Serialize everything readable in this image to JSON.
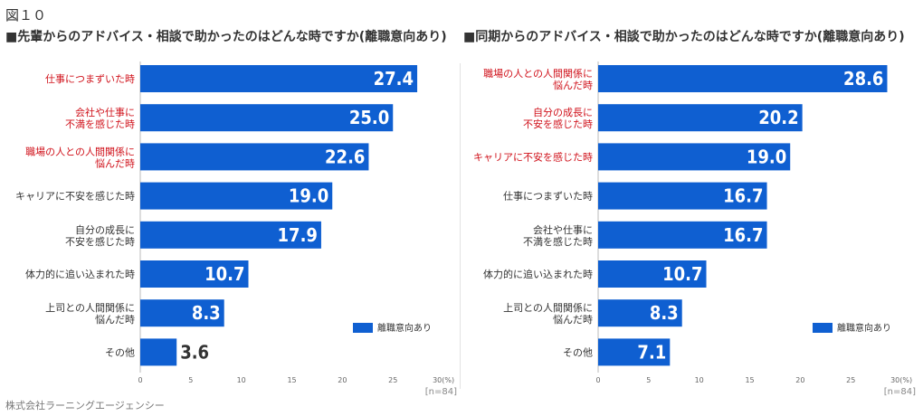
{
  "figure_label": "図１０",
  "footer": "株式会社ラーニングエージェンシー",
  "colors": {
    "bar": "#0f5fd1",
    "highlight": "#d0121b",
    "text": "#333333",
    "value_on_bar": "#ffffff",
    "value_outside": "#333333"
  },
  "chart_data": [
    {
      "type": "bar",
      "orientation": "horizontal",
      "title": "■先輩からのアドバイス・相談で助かったのはどんな時ですか(離職意向あり)",
      "categories": [
        [
          "仕事につまずいた時"
        ],
        [
          "会社や仕事に",
          "不満を感じた時"
        ],
        [
          "職場の人との人間関係に",
          "悩んだ時"
        ],
        [
          "キャリアに不安を感じた時"
        ],
        [
          "自分の成長に",
          "不安を感じた時"
        ],
        [
          "体力的に追い込まれた時"
        ],
        [
          "上司との人間関係に",
          "悩んだ時"
        ],
        [
          "その他"
        ]
      ],
      "highlighted": [
        true,
        true,
        true,
        false,
        false,
        false,
        false,
        false
      ],
      "values": [
        27.4,
        25.0,
        22.6,
        19.0,
        17.9,
        10.7,
        8.3,
        3.6
      ],
      "value_labels": [
        "27.4",
        "25.0",
        "22.6",
        "19.0",
        "17.9",
        "10.7",
        "8.3",
        "3.6"
      ],
      "xlim": [
        0,
        30
      ],
      "ticks": [
        "0",
        "5",
        "10",
        "15",
        "20",
        "25",
        "30(%)"
      ],
      "n_label": "[n=84]",
      "legend": "離職意向あり",
      "legend_position": "lower-right"
    },
    {
      "type": "bar",
      "orientation": "horizontal",
      "title": "■同期からのアドバイス・相談で助かったのはどんな時ですか(離職意向あり)",
      "categories": [
        [
          "職場の人との人間関係に",
          "悩んだ時"
        ],
        [
          "自分の成長に",
          "不安を感じた時"
        ],
        [
          "キャリアに不安を感じた時"
        ],
        [
          "仕事につまずいた時"
        ],
        [
          "会社や仕事に",
          "不満を感じた時"
        ],
        [
          "体力的に追い込まれた時"
        ],
        [
          "上司との人間関係に",
          "悩んだ時"
        ],
        [
          "その他"
        ]
      ],
      "highlighted": [
        true,
        true,
        true,
        false,
        false,
        false,
        false,
        false
      ],
      "values": [
        28.6,
        20.2,
        19.0,
        16.7,
        16.7,
        10.7,
        8.3,
        7.1
      ],
      "value_labels": [
        "28.6",
        "20.2",
        "19.0",
        "16.7",
        "16.7",
        "10.7",
        "8.3",
        "7.1"
      ],
      "xlim": [
        0,
        30
      ],
      "ticks": [
        "0",
        "5",
        "10",
        "15",
        "20",
        "25",
        "30(%)"
      ],
      "n_label": "[n=84]",
      "legend": "離職意向あり",
      "legend_position": "lower-right"
    }
  ]
}
